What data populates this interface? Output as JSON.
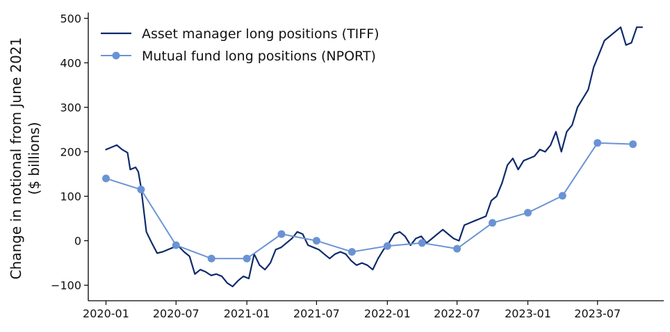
{
  "chart_data": {
    "type": "line",
    "title": "",
    "xlabel": "",
    "ylabel_line1": "Change in notional from June 2021",
    "ylabel_line2": "($ billions)",
    "ylim": [
      -135,
      510
    ],
    "yticks": [
      -100,
      0,
      100,
      200,
      300,
      400,
      500
    ],
    "xlim": [
      "2019-11-16",
      "2023-12-20"
    ],
    "xticks": [
      "2020-01",
      "2020-07",
      "2021-01",
      "2021-07",
      "2022-01",
      "2022-07",
      "2023-01",
      "2023-07"
    ],
    "grid": false,
    "legend_position": "top-left",
    "series": [
      {
        "name": "Asset manager long positions (TIFF)",
        "color": "#0d2a6b",
        "marker": "none",
        "x": [
          "2020-01-01",
          "2020-01-15",
          "2020-01-29",
          "2020-02-12",
          "2020-02-26",
          "2020-03-04",
          "2020-03-18",
          "2020-03-25",
          "2020-04-01",
          "2020-04-15",
          "2020-04-29",
          "2020-05-13",
          "2020-05-27",
          "2020-06-10",
          "2020-06-24",
          "2020-07-08",
          "2020-07-22",
          "2020-08-05",
          "2020-08-19",
          "2020-09-02",
          "2020-09-16",
          "2020-09-30",
          "2020-10-14",
          "2020-10-28",
          "2020-11-11",
          "2020-11-25",
          "2020-12-09",
          "2020-12-23",
          "2021-01-06",
          "2021-01-20",
          "2021-02-03",
          "2021-02-17",
          "2021-03-03",
          "2021-03-17",
          "2021-03-31",
          "2021-04-14",
          "2021-04-28",
          "2021-05-12",
          "2021-05-26",
          "2021-06-09",
          "2021-06-23",
          "2021-07-07",
          "2021-07-21",
          "2021-08-04",
          "2021-08-18",
          "2021-09-01",
          "2021-09-15",
          "2021-09-29",
          "2021-10-13",
          "2021-10-27",
          "2021-11-10",
          "2021-11-24",
          "2021-12-08",
          "2021-12-22",
          "2022-01-05",
          "2022-01-19",
          "2022-02-02",
          "2022-02-16",
          "2022-03-02",
          "2022-03-16",
          "2022-03-30",
          "2022-04-13",
          "2022-04-27",
          "2022-05-11",
          "2022-05-25",
          "2022-06-08",
          "2022-06-22",
          "2022-07-06",
          "2022-07-20",
          "2022-08-03",
          "2022-08-17",
          "2022-08-31",
          "2022-09-14",
          "2022-09-28",
          "2022-10-12",
          "2022-10-26",
          "2022-11-09",
          "2022-11-23",
          "2022-12-07",
          "2022-12-21",
          "2023-01-04",
          "2023-01-18",
          "2023-02-01",
          "2023-02-15",
          "2023-03-01",
          "2023-03-15",
          "2023-03-29",
          "2023-04-12",
          "2023-04-26",
          "2023-05-10",
          "2023-05-24",
          "2023-06-07",
          "2023-06-21",
          "2023-07-05",
          "2023-07-19",
          "2023-08-02",
          "2023-08-16",
          "2023-08-30",
          "2023-09-13",
          "2023-09-27",
          "2023-10-11",
          "2023-10-25"
        ],
        "values": [
          205,
          210,
          215,
          205,
          198,
          160,
          165,
          155,
          120,
          20,
          -5,
          -28,
          -25,
          -20,
          -15,
          -13,
          -25,
          -35,
          -75,
          -65,
          -70,
          -78,
          -75,
          -80,
          -95,
          -103,
          -90,
          -80,
          -85,
          -30,
          -55,
          -65,
          -50,
          -20,
          -15,
          -5,
          5,
          20,
          15,
          -10,
          -15,
          -20,
          -30,
          -40,
          -30,
          -25,
          -30,
          -45,
          -55,
          -50,
          -55,
          -65,
          -40,
          -20,
          -5,
          15,
          20,
          10,
          -10,
          5,
          10,
          -5,
          5,
          15,
          25,
          15,
          5,
          0,
          35,
          40,
          45,
          50,
          55,
          90,
          100,
          130,
          170,
          185,
          160,
          180,
          185,
          190,
          205,
          200,
          215,
          245,
          200,
          245,
          260,
          300,
          320,
          340,
          390,
          420,
          450,
          460,
          470,
          480,
          440,
          445,
          480,
          480
        ]
      },
      {
        "name": "Mutual fund long positions (NPORT)",
        "color": "#6a93d4",
        "marker": "circle",
        "x": [
          "2020-01-01",
          "2020-04-01",
          "2020-07-01",
          "2020-10-01",
          "2021-01-01",
          "2021-04-01",
          "2021-07-01",
          "2021-10-01",
          "2022-01-01",
          "2022-04-01",
          "2022-07-01",
          "2022-10-01",
          "2023-01-01",
          "2023-04-01",
          "2023-07-01",
          "2023-10-01"
        ],
        "values": [
          140,
          115,
          -10,
          -40,
          -40,
          15,
          0,
          -25,
          -12,
          -5,
          -18,
          40,
          63,
          101,
          220,
          217
        ]
      }
    ]
  }
}
